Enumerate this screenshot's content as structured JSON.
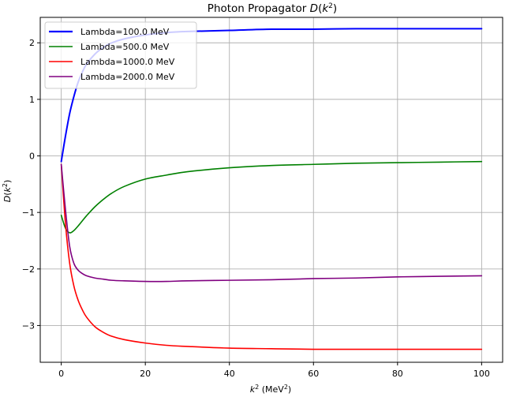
{
  "chart_data": {
    "type": "line",
    "title": "Photon Propagator D(k²)",
    "title_parts": {
      "prefix": "Photon Propagator ",
      "func": "D",
      "arg": "k",
      "sup": "2"
    },
    "xlabel": "k² (MeV²)",
    "xlabel_parts": {
      "var": "k",
      "sup": "2",
      "unit": "(MeV",
      "unit_sup": "2",
      "unit_close": ")"
    },
    "ylabel": "D(k²)",
    "xlim": [
      -5,
      105
    ],
    "ylim": [
      -3.65,
      2.45
    ],
    "xticks": [
      0,
      20,
      40,
      60,
      80,
      100
    ],
    "xtick_labels": [
      "0",
      "20",
      "40",
      "60",
      "80",
      "100"
    ],
    "yticks": [
      -3,
      -2,
      -1,
      0,
      1,
      2
    ],
    "ytick_labels": [
      "−3",
      "−2",
      "−1",
      "0",
      "1",
      "2"
    ],
    "grid": true,
    "legend_position": "upper left",
    "series": [
      {
        "name": "Lambda=100.0 MeV",
        "color": "#0000ff",
        "x": [
          0,
          1,
          2,
          3,
          4,
          5,
          6,
          8,
          10,
          12,
          15,
          20,
          25,
          30,
          40,
          50,
          60,
          70,
          80,
          90,
          100
        ],
        "y": [
          -0.1,
          0.35,
          0.75,
          1.05,
          1.3,
          1.48,
          1.62,
          1.8,
          1.92,
          2.0,
          2.07,
          2.14,
          2.18,
          2.2,
          2.22,
          2.24,
          2.24,
          2.25,
          2.25,
          2.25,
          2.25
        ]
      },
      {
        "name": "Lambda=500.0 MeV",
        "color": "#008000",
        "x": [
          0,
          1,
          2,
          3,
          4,
          5,
          6,
          8,
          10,
          12,
          15,
          20,
          25,
          30,
          40,
          50,
          60,
          70,
          80,
          90,
          100
        ],
        "y": [
          -1.05,
          -1.28,
          -1.36,
          -1.32,
          -1.24,
          -1.15,
          -1.06,
          -0.9,
          -0.77,
          -0.66,
          -0.54,
          -0.41,
          -0.34,
          -0.28,
          -0.21,
          -0.17,
          -0.15,
          -0.13,
          -0.12,
          -0.11,
          -0.1
        ]
      },
      {
        "name": "Lambda=1000.0 MeV",
        "color": "#ff0000",
        "x": [
          0,
          1,
          2,
          3,
          4,
          5,
          6,
          8,
          10,
          12,
          15,
          20,
          25,
          30,
          40,
          50,
          60,
          70,
          80,
          90,
          100
        ],
        "y": [
          -0.15,
          -1.2,
          -1.9,
          -2.3,
          -2.55,
          -2.72,
          -2.85,
          -3.02,
          -3.12,
          -3.19,
          -3.25,
          -3.31,
          -3.35,
          -3.37,
          -3.4,
          -3.41,
          -3.42,
          -3.42,
          -3.42,
          -3.42,
          -3.42
        ]
      },
      {
        "name": "Lambda=2000.0 MeV",
        "color": "#800080",
        "x": [
          0,
          1,
          2,
          3,
          4,
          5,
          6,
          8,
          10,
          12,
          15,
          20,
          25,
          30,
          40,
          50,
          60,
          70,
          80,
          90,
          100
        ],
        "y": [
          -0.15,
          -0.95,
          -1.6,
          -1.9,
          -2.02,
          -2.08,
          -2.12,
          -2.16,
          -2.18,
          -2.2,
          -2.21,
          -2.22,
          -2.22,
          -2.21,
          -2.2,
          -2.19,
          -2.17,
          -2.16,
          -2.14,
          -2.13,
          -2.12
        ]
      }
    ]
  }
}
